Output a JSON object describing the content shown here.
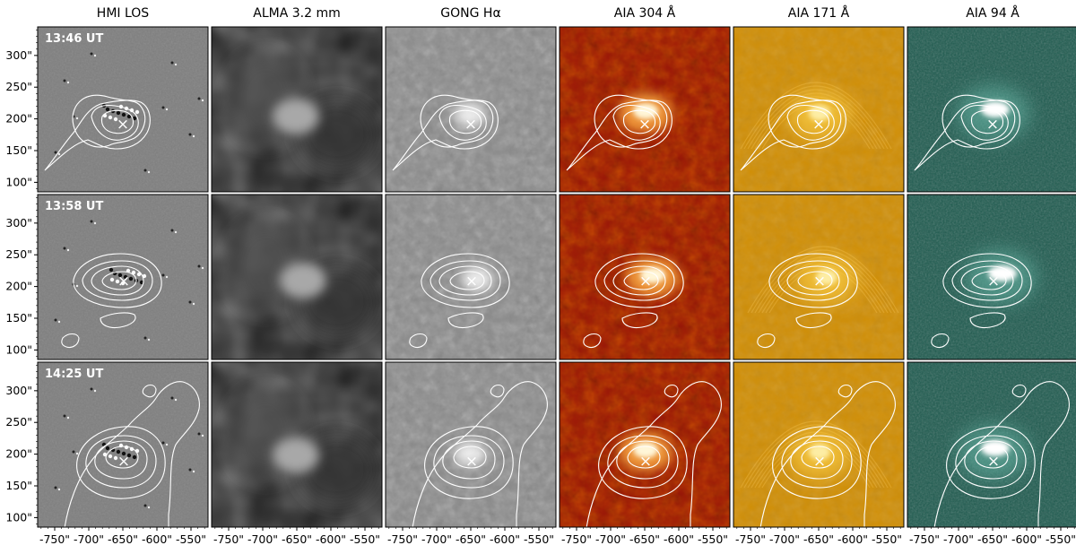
{
  "columns": [
    {
      "title": "HMI LOS",
      "kind": "hmi"
    },
    {
      "title": "ALMA 3.2 mm",
      "kind": "alma"
    },
    {
      "title": "GONG Hα",
      "kind": "gong"
    },
    {
      "title": "AIA 304 Å",
      "kind": "aia304"
    },
    {
      "title": "AIA 171 Å",
      "kind": "aia171"
    },
    {
      "title": "AIA 94 Å",
      "kind": "aia94"
    }
  ],
  "rows": [
    {
      "time": "13:46 UT"
    },
    {
      "time": "13:58 UT"
    },
    {
      "time": "14:25 UT"
    }
  ],
  "x_ticks": [
    "-750\"",
    "-700\"",
    "-650\"",
    "-600\"",
    "-550\""
  ],
  "y_ticks": [
    "300\"",
    "250\"",
    "200\"",
    "150\"",
    "100\""
  ],
  "marker": "×",
  "colors": {
    "hmi": "#7f7f7f",
    "alma": "#1e1e1e",
    "gong": "#8a8a8a",
    "aia304": "#9a1408",
    "aia171": "#d08e05",
    "aia94": "#1d5a4e",
    "contour": "#ffffff"
  }
}
